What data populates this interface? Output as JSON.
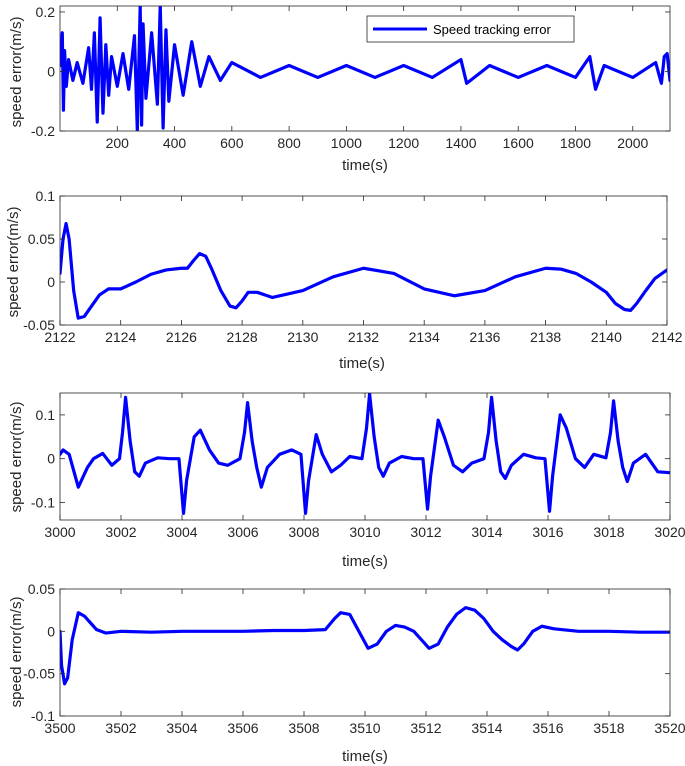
{
  "colors": {
    "series": "#0000ff",
    "axis": "#262626",
    "background": "#ffffff"
  },
  "chart_data": [
    {
      "type": "line",
      "xlabel": "time(s)",
      "ylabel": "speed error(m/s)",
      "xlim": [
        0,
        2130
      ],
      "ylim": [
        -0.2,
        0.22
      ],
      "xticks": [
        200,
        400,
        600,
        800,
        1000,
        1200,
        1400,
        1600,
        1800,
        2000
      ],
      "yticks": [
        -0.2,
        0,
        0.2
      ],
      "ytick_labels": [
        "-0.2",
        "0",
        "0.2"
      ],
      "legend": {
        "entries": [
          "Speed tracking error"
        ],
        "position": "top-right"
      },
      "series": [
        {
          "name": "Speed tracking error",
          "x": [
            0,
            8,
            12,
            16,
            22,
            30,
            45,
            60,
            80,
            100,
            110,
            120,
            130,
            140,
            150,
            160,
            170,
            180,
            200,
            220,
            240,
            260,
            270,
            280,
            285,
            290,
            300,
            320,
            340,
            350,
            360,
            370,
            380,
            400,
            430,
            460,
            490,
            520,
            560,
            600,
            700,
            800,
            900,
            1000,
            1100,
            1200,
            1300,
            1400,
            1420,
            1500,
            1600,
            1700,
            1800,
            1850,
            1870,
            1900,
            2000,
            2080,
            2100,
            2110,
            2120,
            2130
          ],
          "y": [
            0.02,
            0.13,
            -0.13,
            0.07,
            -0.05,
            0.04,
            -0.03,
            0.03,
            -0.04,
            0.08,
            -0.06,
            0.13,
            -0.17,
            0.18,
            -0.14,
            0.09,
            -0.08,
            0.05,
            -0.05,
            0.06,
            -0.06,
            0.12,
            -0.2,
            0.22,
            -0.18,
            0.16,
            -0.09,
            0.13,
            -0.11,
            0.22,
            -0.19,
            0.14,
            -0.1,
            0.09,
            -0.08,
            0.1,
            -0.05,
            0.05,
            -0.03,
            0.03,
            -0.02,
            0.02,
            -0.02,
            0.02,
            -0.02,
            0.02,
            -0.02,
            0.04,
            -0.04,
            0.02,
            -0.02,
            0.02,
            -0.02,
            0.05,
            -0.06,
            0.02,
            -0.02,
            0.03,
            -0.04,
            0.05,
            0.06,
            -0.03
          ]
        }
      ]
    },
    {
      "type": "line",
      "xlabel": "time(s)",
      "ylabel": "speed error(m/s)",
      "xlim": [
        2122,
        2142
      ],
      "ylim": [
        -0.05,
        0.1
      ],
      "xticks": [
        2122,
        2124,
        2126,
        2128,
        2130,
        2132,
        2134,
        2136,
        2138,
        2140,
        2142
      ],
      "yticks": [
        -0.05,
        0,
        0.05,
        0.1
      ],
      "ytick_labels": [
        "-0.05",
        "0",
        "0.05",
        "0.1"
      ],
      "series": [
        {
          "x": [
            2122.0,
            2122.1,
            2122.2,
            2122.3,
            2122.45,
            2122.6,
            2122.8,
            2123.0,
            2123.3,
            2123.6,
            2124.0,
            2124.5,
            2125.0,
            2125.5,
            2126.0,
            2126.2,
            2126.4,
            2126.6,
            2126.8,
            2127.0,
            2127.3,
            2127.6,
            2127.8,
            2128.0,
            2128.2,
            2128.5,
            2129.0,
            2130.0,
            2131.0,
            2132.0,
            2133.0,
            2134.0,
            2135.0,
            2136.0,
            2137.0,
            2138.0,
            2138.5,
            2139.0,
            2139.5,
            2140.0,
            2140.3,
            2140.6,
            2140.8,
            2141.0,
            2141.3,
            2141.6,
            2142.0
          ],
          "y": [
            0.01,
            0.05,
            0.068,
            0.05,
            -0.01,
            -0.042,
            -0.04,
            -0.03,
            -0.015,
            -0.008,
            -0.008,
            0.0,
            0.009,
            0.014,
            0.016,
            0.016,
            0.025,
            0.033,
            0.03,
            0.015,
            -0.01,
            -0.028,
            -0.03,
            -0.022,
            -0.012,
            -0.012,
            -0.018,
            -0.01,
            0.006,
            0.016,
            0.01,
            -0.008,
            -0.016,
            -0.01,
            0.006,
            0.016,
            0.015,
            0.01,
            0.0,
            -0.012,
            -0.025,
            -0.032,
            -0.033,
            -0.025,
            -0.01,
            0.004,
            0.014
          ]
        }
      ]
    },
    {
      "type": "line",
      "xlabel": "time(s)",
      "ylabel": "speed error(m/s)",
      "xlim": [
        3000,
        3020
      ],
      "ylim": [
        -0.14,
        0.15
      ],
      "xticks": [
        3000,
        3002,
        3004,
        3006,
        3008,
        3010,
        3012,
        3014,
        3016,
        3018,
        3020
      ],
      "yticks": [
        -0.1,
        0,
        0.1
      ],
      "ytick_labels": [
        "-0.1",
        "0",
        "0.1"
      ],
      "series": [
        {
          "x": [
            3000.0,
            3000.1,
            3000.3,
            3000.6,
            3000.9,
            3001.1,
            3001.4,
            3001.7,
            3001.95,
            3002.05,
            3002.15,
            3002.3,
            3002.45,
            3002.6,
            3002.8,
            3003.2,
            3003.6,
            3003.9,
            3004.05,
            3004.15,
            3004.4,
            3004.6,
            3004.9,
            3005.2,
            3005.5,
            3005.9,
            3006.05,
            3006.15,
            3006.3,
            3006.45,
            3006.6,
            3006.8,
            3007.2,
            3007.6,
            3007.9,
            3008.05,
            3008.15,
            3008.4,
            3008.6,
            3008.9,
            3009.2,
            3009.5,
            3009.9,
            3010.05,
            3010.15,
            3010.3,
            3010.45,
            3010.6,
            3010.8,
            3011.2,
            3011.6,
            3011.9,
            3012.05,
            3012.15,
            3012.4,
            3012.6,
            3012.9,
            3013.2,
            3013.5,
            3013.9,
            3014.05,
            3014.15,
            3014.3,
            3014.45,
            3014.6,
            3014.8,
            3015.2,
            3015.6,
            3015.9,
            3016.05,
            3016.15,
            3016.4,
            3016.6,
            3016.9,
            3017.2,
            3017.5,
            3017.9,
            3018.05,
            3018.15,
            3018.3,
            3018.45,
            3018.6,
            3018.8,
            3019.2,
            3019.6,
            3020.0
          ],
          "y": [
            0.01,
            0.02,
            0.01,
            -0.065,
            -0.02,
            0.0,
            0.012,
            -0.015,
            0.0,
            0.06,
            0.14,
            0.04,
            -0.03,
            -0.04,
            -0.01,
            0.002,
            0.0,
            0.0,
            -0.125,
            -0.05,
            0.05,
            0.065,
            0.02,
            -0.01,
            -0.015,
            0.0,
            0.06,
            0.128,
            0.04,
            -0.02,
            -0.065,
            -0.02,
            0.01,
            0.02,
            0.01,
            -0.125,
            -0.05,
            0.055,
            0.01,
            -0.03,
            -0.015,
            0.005,
            0.0,
            0.07,
            0.148,
            0.05,
            -0.02,
            -0.04,
            -0.01,
            0.005,
            0.0,
            0.0,
            -0.115,
            -0.04,
            0.088,
            0.05,
            -0.015,
            -0.03,
            -0.01,
            0.0,
            0.06,
            0.14,
            0.04,
            -0.03,
            -0.045,
            -0.015,
            0.01,
            0.002,
            0.0,
            -0.12,
            -0.04,
            0.1,
            0.07,
            0.0,
            -0.02,
            0.01,
            0.002,
            0.06,
            0.132,
            0.04,
            -0.02,
            -0.052,
            -0.01,
            0.01,
            -0.03,
            -0.032
          ]
        }
      ]
    },
    {
      "type": "line",
      "xlabel": "time(s)",
      "ylabel": "speed error(m/s)",
      "xlim": [
        3500,
        3520
      ],
      "ylim": [
        -0.1,
        0.05
      ],
      "xticks": [
        3500,
        3502,
        3504,
        3506,
        3508,
        3510,
        3512,
        3514,
        3516,
        3518,
        3520
      ],
      "yticks": [
        -0.1,
        -0.05,
        0,
        0.05
      ],
      "ytick_labels": [
        "-0.1",
        "-0.05",
        "0",
        "0.05"
      ],
      "series": [
        {
          "x": [
            3500.0,
            3500.05,
            3500.15,
            3500.25,
            3500.4,
            3500.6,
            3500.8,
            3501.0,
            3501.2,
            3501.5,
            3502.0,
            3503.0,
            3504.0,
            3505.0,
            3506.0,
            3507.0,
            3508.0,
            3508.7,
            3509.0,
            3509.2,
            3509.5,
            3509.8,
            3510.1,
            3510.4,
            3510.7,
            3511.0,
            3511.3,
            3511.6,
            3511.9,
            3512.1,
            3512.4,
            3512.7,
            3513.0,
            3513.3,
            3513.6,
            3513.9,
            3514.2,
            3514.5,
            3514.8,
            3515.0,
            3515.2,
            3515.5,
            3515.8,
            3516.2,
            3517.0,
            3518.0,
            3519.0,
            3520.0
          ],
          "y": [
            0.0,
            -0.04,
            -0.062,
            -0.055,
            -0.01,
            0.022,
            0.018,
            0.01,
            0.002,
            -0.002,
            0.0,
            -0.001,
            0.0,
            0.0,
            0.0,
            0.001,
            0.001,
            0.002,
            0.015,
            0.022,
            0.02,
            0.0,
            -0.02,
            -0.015,
            0.0,
            0.007,
            0.005,
            0.0,
            -0.012,
            -0.02,
            -0.015,
            0.005,
            0.02,
            0.028,
            0.025,
            0.015,
            0.0,
            -0.01,
            -0.018,
            -0.022,
            -0.015,
            0.0,
            0.006,
            0.003,
            0.0,
            0.0,
            -0.001,
            -0.001
          ]
        }
      ]
    }
  ]
}
